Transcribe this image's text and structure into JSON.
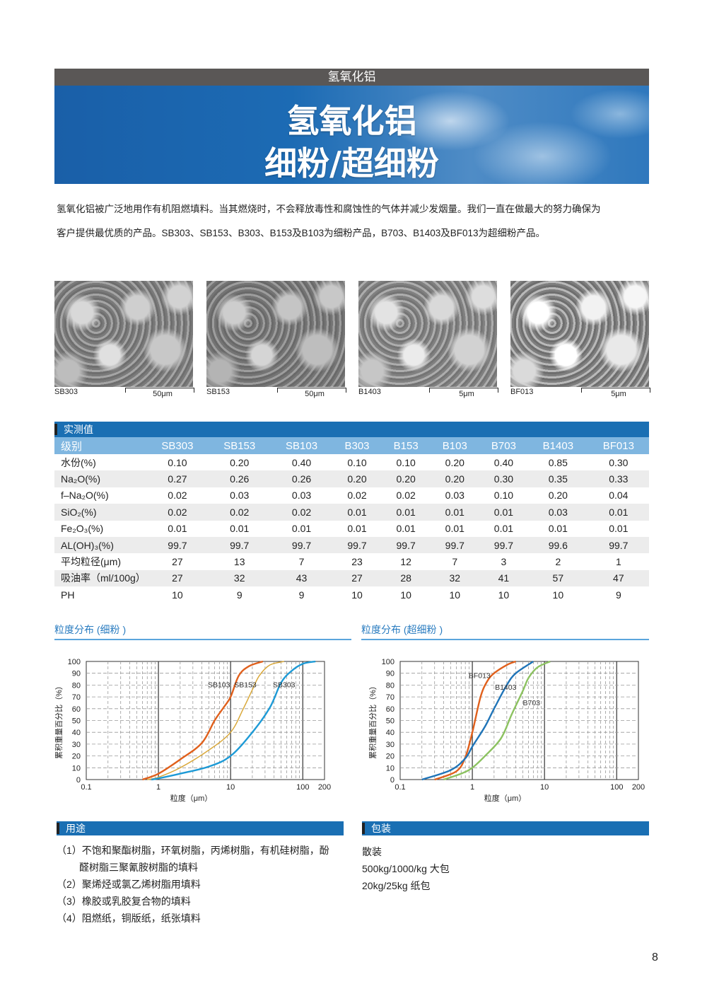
{
  "header": {
    "category": "氢氧化铝",
    "title_line1": "氢氧化铝",
    "title_line2": "细粉/超细粉"
  },
  "intro": {
    "line1": "氢氧化铝被广泛地用作有机阻燃填料。当其燃烧时，不会释放毒性和腐蚀性的气体并减少发烟量。我们一直在做最大的努力确保为",
    "line2": "客户提供最优质的产品。SB303、SB153、B303、B153及B103为细粉产品，B703、B1403及BF013为超细粉产品。"
  },
  "images": [
    {
      "label": "SB303",
      "scale": "50μm"
    },
    {
      "label": "SB153",
      "scale": "50μm"
    },
    {
      "label": "B1403",
      "scale": "5μm"
    },
    {
      "label": "BF013",
      "scale": "5μm"
    }
  ],
  "table": {
    "title": "实测值",
    "headers": [
      "级别",
      "SB303",
      "SB153",
      "SB103",
      "B303",
      "B153",
      "B103",
      "B703",
      "B1403",
      "BF013"
    ],
    "rows": [
      [
        "水份(%)",
        "0.10",
        "0.20",
        "0.40",
        "0.10",
        "0.10",
        "0.20",
        "0.40",
        "0.85",
        "0.30"
      ],
      [
        "Na₂O(%)",
        "0.27",
        "0.26",
        "0.26",
        "0.20",
        "0.20",
        "0.20",
        "0.30",
        "0.35",
        "0.33"
      ],
      [
        "f–Na₂O(%)",
        "0.02",
        "0.03",
        "0.03",
        "0.02",
        "0.02",
        "0.03",
        "0.10",
        "0.20",
        "0.04"
      ],
      [
        "SiO₂(%)",
        "0.02",
        "0.02",
        "0.02",
        "0.01",
        "0.01",
        "0.01",
        "0.01",
        "0.03",
        "0.01"
      ],
      [
        "Fe₂O₃(%)",
        "0.01",
        "0.01",
        "0.01",
        "0.01",
        "0.01",
        "0.01",
        "0.01",
        "0.01",
        "0.01"
      ],
      [
        "AL(OH)₃(%)",
        "99.7",
        "99.7",
        "99.7",
        "99.7",
        "99.7",
        "99.7",
        "99.7",
        "99.6",
        "99.7"
      ],
      [
        "平均粒径(μm)",
        "27",
        "13",
        "7",
        "23",
        "12",
        "7",
        "3",
        "2",
        "1"
      ],
      [
        "吸油率（ml/100g）",
        "27",
        "32",
        "43",
        "27",
        "28",
        "32",
        "41",
        "57",
        "47"
      ],
      [
        "PH",
        "10",
        "9",
        "9",
        "10",
        "10",
        "10",
        "10",
        "10",
        "9"
      ]
    ]
  },
  "chart_data": [
    {
      "type": "line",
      "title": "粒度分布 (细粉 )",
      "xlabel": "粒度（μm）",
      "ylabel": "累积重量百分比（%）",
      "xscale": "log",
      "xlim": [
        0.1,
        200
      ],
      "ylim": [
        0,
        100
      ],
      "xticks": [
        "0.1",
        "1",
        "10",
        "100",
        "200"
      ],
      "xtick_values": [
        0.1,
        1,
        10,
        100,
        200
      ],
      "yticks": [
        "0",
        "10",
        "20",
        "30",
        "40",
        "50",
        "60",
        "70",
        "80",
        "90",
        "100"
      ],
      "grid": true,
      "series": [
        {
          "name": "SB103",
          "color": "#e0601c",
          "label_at": [
            6.9,
            78
          ],
          "points": [
            [
              0.6,
              0
            ],
            [
              1,
              5
            ],
            [
              2,
              17
            ],
            [
              4,
              31
            ],
            [
              6,
              50
            ],
            [
              8,
              61
            ],
            [
              10,
              70
            ],
            [
              13,
              88
            ],
            [
              18,
              96
            ],
            [
              28,
              100
            ]
          ]
        },
        {
          "name": "SB153",
          "color": "#d9a83a",
          "label_at": [
            16,
            78
          ],
          "points": [
            [
              0.7,
              0
            ],
            [
              1,
              2
            ],
            [
              2,
              10
            ],
            [
              5,
              25
            ],
            [
              10,
              40
            ],
            [
              15,
              60
            ],
            [
              20,
              76
            ],
            [
              25,
              88
            ],
            [
              35,
              97
            ],
            [
              55,
              100
            ]
          ]
        },
        {
          "name": "SB303",
          "color": "#1d9ad6",
          "label_at": [
            55,
            78
          ],
          "points": [
            [
              0.8,
              0
            ],
            [
              1,
              1
            ],
            [
              2,
              5
            ],
            [
              5,
              11
            ],
            [
              10,
              20
            ],
            [
              20,
              40
            ],
            [
              35,
              61
            ],
            [
              50,
              82
            ],
            [
              70,
              92
            ],
            [
              100,
              98
            ],
            [
              150,
              100
            ]
          ]
        }
      ]
    },
    {
      "type": "line",
      "title": "粒度分布 (超细粉 )",
      "xlabel": "粒度（μm）",
      "ylabel": "累积重量百分比（%）",
      "xscale": "log",
      "xlim": [
        0.1,
        200
      ],
      "ylim": [
        0,
        100
      ],
      "xticks": [
        "0.1",
        "1",
        "10",
        "100",
        "200"
      ],
      "xtick_values": [
        0.1,
        1,
        10,
        100,
        200
      ],
      "yticks": [
        "0",
        "10",
        "20",
        "30",
        "40",
        "50",
        "60",
        "70",
        "80",
        "90",
        "100"
      ],
      "grid": true,
      "series": [
        {
          "name": "BF013",
          "color": "#e0601c",
          "label_at": [
            1.26,
            86
          ],
          "points": [
            [
              0.3,
              0
            ],
            [
              0.6,
              7
            ],
            [
              0.8,
              19
            ],
            [
              1,
              40
            ],
            [
              1.3,
              70
            ],
            [
              1.6,
              83
            ],
            [
              2,
              90
            ],
            [
              3,
              97
            ],
            [
              4,
              100
            ]
          ]
        },
        {
          "name": "B1403",
          "color": "#1f74b8",
          "label_at": [
            2.9,
            76
          ],
          "points": [
            [
              0.2,
              0
            ],
            [
              0.5,
              8
            ],
            [
              0.8,
              18
            ],
            [
              1,
              28
            ],
            [
              1.5,
              45
            ],
            [
              2,
              60
            ],
            [
              3,
              80
            ],
            [
              4,
              90
            ],
            [
              7,
              100
            ]
          ]
        },
        {
          "name": "B703",
          "color": "#8cc260",
          "label_at": [
            6.6,
            63
          ],
          "points": [
            [
              0.4,
              0
            ],
            [
              0.7,
              5
            ],
            [
              1,
              10
            ],
            [
              1.5,
              20
            ],
            [
              2.5,
              35
            ],
            [
              3.5,
              55
            ],
            [
              5,
              75
            ],
            [
              6,
              86
            ],
            [
              8,
              95
            ],
            [
              12,
              100
            ]
          ]
        }
      ]
    }
  ],
  "uses": {
    "title": "用途",
    "items": [
      "（1）不饱和聚酯树脂，环氧树脂，丙烯树脂，有机硅树脂，酚",
      "醛树脂三聚氰胺树脂的填料",
      "（2）聚烯烃或氯乙烯树脂用填料",
      "（3）橡胶或乳胶复合物的填料",
      "（4）阻燃纸，铜版纸，纸张填料"
    ]
  },
  "packaging": {
    "title": "包装",
    "items": [
      "散装",
      "500kg/1000/kg 大包",
      "20kg/25kg 纸包"
    ]
  },
  "page_number": "8"
}
